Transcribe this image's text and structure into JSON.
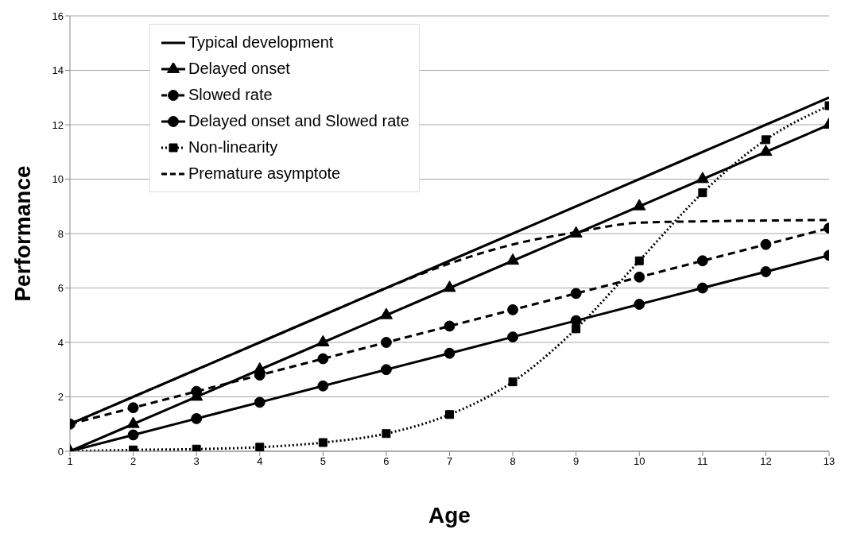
{
  "chart_data": {
    "type": "line",
    "xlabel": "Age",
    "ylabel": "Performance",
    "x": [
      1,
      2,
      3,
      4,
      5,
      6,
      7,
      8,
      9,
      10,
      11,
      12,
      13
    ],
    "xlim": [
      1,
      13
    ],
    "xticks": [
      1,
      2,
      3,
      4,
      5,
      6,
      7,
      8,
      9,
      10,
      11,
      12,
      13
    ],
    "ylim": [
      0,
      16
    ],
    "yticks": [
      0,
      2,
      4,
      6,
      8,
      10,
      12,
      14,
      16
    ],
    "grid": "y",
    "legend": "top left",
    "series": [
      {
        "name": "Typical development",
        "color": "#000000",
        "marker": "none",
        "line_style": "solid",
        "values": [
          1,
          2,
          3,
          4,
          5,
          6,
          7,
          8,
          9,
          10,
          11,
          12,
          13
        ]
      },
      {
        "name": "Delayed onset",
        "color": "#000000",
        "marker": "triangle",
        "line_style": "solid",
        "values": [
          0,
          1,
          2,
          3,
          4,
          5,
          6,
          7,
          8,
          9,
          10,
          11,
          12
        ]
      },
      {
        "name": "Slowed rate",
        "color": "#000000",
        "marker": "circle",
        "line_style": "dashed",
        "values": [
          1,
          1.6,
          2.2,
          2.8,
          3.4,
          4,
          4.6,
          5.2,
          5.8,
          6.4,
          7,
          7.6,
          8.2
        ]
      },
      {
        "name": "Delayed onset and Slowed rate",
        "color": "#000000",
        "marker": "circle",
        "line_style": "solid",
        "values": [
          0,
          0.6,
          1.2,
          1.8,
          2.4,
          3,
          3.6,
          4.2,
          4.8,
          5.4,
          6,
          6.6,
          7.2
        ]
      },
      {
        "name": "Non-linearity",
        "color": "#000000",
        "marker": "square",
        "line_style": "dotted",
        "values": [
          0,
          0.05,
          0.08,
          0.15,
          0.32,
          0.65,
          1.35,
          2.55,
          4.5,
          7,
          9.5,
          11.45,
          12.7
        ]
      },
      {
        "name": "Premature asymptote",
        "color": "#000000",
        "marker": "none",
        "line_style": "dashed",
        "values": [
          1,
          2,
          3,
          4,
          5,
          6,
          6.9,
          7.6,
          8.05,
          8.4,
          8.45,
          8.48,
          8.5
        ]
      }
    ]
  }
}
